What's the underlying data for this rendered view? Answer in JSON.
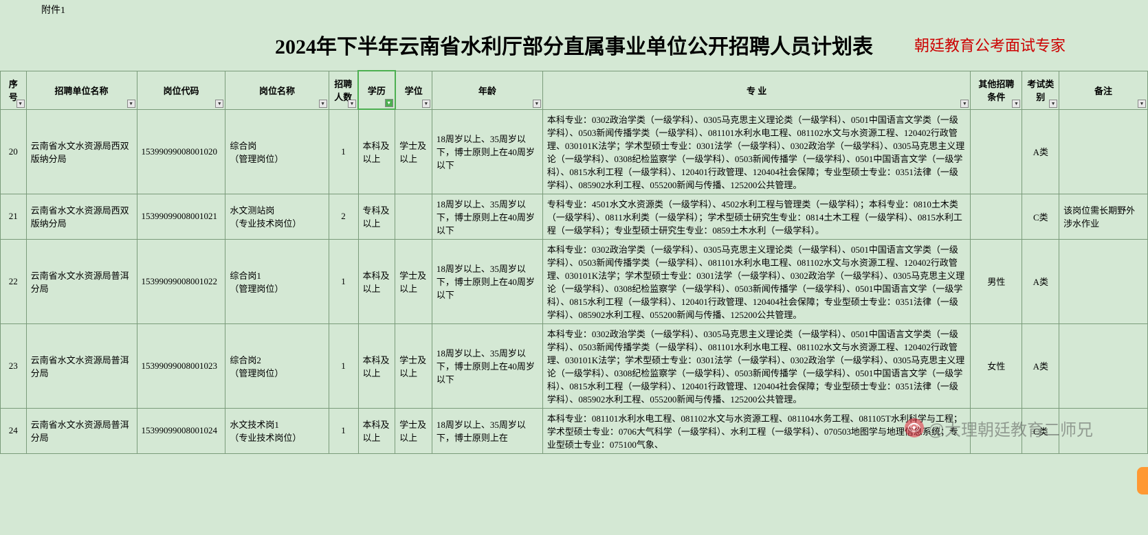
{
  "attachment_label": "附件1",
  "title": "2024年下半年云南省水利厅部分直属事业单位公开招聘人员计划表",
  "subtitle": "朝廷教育公考面试专家",
  "headers": {
    "seq": "序号",
    "unit": "招聘单位名称",
    "code": "岗位代码",
    "position": "岗位名称",
    "count": "招聘人数",
    "edu": "学历",
    "degree": "学位",
    "age": "年龄",
    "major": "专    业",
    "other": "其他招聘条件",
    "exam": "考试类别",
    "note": "备注"
  },
  "rows": [
    {
      "seq": "20",
      "unit": "云南省水文水资源局西双版纳分局",
      "code": "15399099008001020",
      "position": "综合岗\n（管理岗位）",
      "count": "1",
      "edu": "本科及以上",
      "degree": "学士及以上",
      "age": "18周岁以上、35周岁以下，博士原则上在40周岁以下",
      "major": "本科专业：0302政治学类（一级学科）、0305马克思主义理论类（一级学科）、0501中国语言文学类（一级学科）、0503新闻传播学类（一级学科）、081101水利水电工程、081102水文与水资源工程、120402行政管理、030101K法学；学术型硕士专业：0301法学（一级学科）、0302政治学（一级学科）、0305马克思主义理论（一级学科）、0308纪检监察学（一级学科）、0503新闻传播学（一级学科）、0501中国语言文学（一级学科）、0815水利工程（一级学科）、120401行政管理、120404社会保障；专业型硕士专业：0351法律（一级学科）、085902水利工程、055200新闻与传播、125200公共管理。",
      "other": "",
      "exam": "A类",
      "note": ""
    },
    {
      "seq": "21",
      "unit": "云南省水文水资源局西双版纳分局",
      "code": "15399099008001021",
      "position": "水文测站岗\n（专业技术岗位）",
      "count": "2",
      "edu": "专科及以上",
      "degree": "",
      "age": "18周岁以上、35周岁以下，博士原则上在40周岁以下",
      "major": "专科专业：4501水文水资源类（一级学科）、4502水利工程与管理类（一级学科）；本科专业：0810土木类（一级学科）、0811水利类（一级学科）；学术型硕士研究生专业：0814土木工程（一级学科）、0815水利工程（一级学科）；专业型硕士研究生专业：0859土木水利（一级学科）。",
      "other": "",
      "exam": "C类",
      "note": "该岗位需长期野外涉水作业"
    },
    {
      "seq": "22",
      "unit": "云南省水文水资源局普洱分局",
      "code": "15399099008001022",
      "position": "综合岗1\n（管理岗位）",
      "count": "1",
      "edu": "本科及以上",
      "degree": "学士及以上",
      "age": "18周岁以上、35周岁以下，博士原则上在40周岁以下",
      "major": "本科专业：0302政治学类（一级学科）、0305马克思主义理论类（一级学科）、0501中国语言文学类（一级学科）、0503新闻传播学类（一级学科）、081101水利水电工程、081102水文与水资源工程、120402行政管理、030101K法学；学术型硕士专业：0301法学（一级学科）、0302政治学（一级学科）、0305马克思主义理论（一级学科）、0308纪检监察学（一级学科）、0503新闻传播学（一级学科）、0501中国语言文学（一级学科）、0815水利工程（一级学科）、120401行政管理、120404社会保障；专业型硕士专业：0351法律（一级学科）、085902水利工程、055200新闻与传播、125200公共管理。",
      "other": "男性",
      "exam": "A类",
      "note": ""
    },
    {
      "seq": "23",
      "unit": "云南省水文水资源局普洱分局",
      "code": "15399099008001023",
      "position": "综合岗2\n（管理岗位）",
      "count": "1",
      "edu": "本科及以上",
      "degree": "学士及以上",
      "age": "18周岁以上、35周岁以下，博士原则上在40周岁以下",
      "major": "本科专业：0302政治学类（一级学科）、0305马克思主义理论类（一级学科）、0501中国语言文学类（一级学科）、0503新闻传播学类（一级学科）、081101水利水电工程、081102水文与水资源工程、120402行政管理、030101K法学；学术型硕士专业：0301法学（一级学科）、0302政治学（一级学科）、0305马克思主义理论（一级学科）、0308纪检监察学（一级学科）、0503新闻传播学（一级学科）、0501中国语言文学（一级学科）、0815水利工程（一级学科）、120401行政管理、120404社会保障；专业型硕士专业：0351法律（一级学科）、085902水利工程、055200新闻与传播、125200公共管理。",
      "other": "女性",
      "exam": "A类",
      "note": ""
    },
    {
      "seq": "24",
      "unit": "云南省水文水资源局普洱分局",
      "code": "15399099008001024",
      "position": "水文技术岗1\n（专业技术岗位）",
      "count": "1",
      "edu": "本科及以上",
      "degree": "学士及以上",
      "age": "18周岁以上、35周岁以下，博士原则上在",
      "major": "本科专业：081101水利水电工程、081102水文与水资源工程、081104水务工程、081105T水利科学与工程；学术型硕士专业：0706大气科学（一级学科）、水利工程（一级学科）、070503地图学与地理信息系统；专业型硕士专业：075100气象、",
      "other": "",
      "exam": "C类",
      "note": ""
    }
  ],
  "watermark": "@大理朝廷教育二师兄",
  "colors": {
    "background": "#d4e8d4",
    "border": "#7a9b7a",
    "subtitle": "#cc0000",
    "text": "#000000",
    "highlight_border": "#4caf50"
  }
}
